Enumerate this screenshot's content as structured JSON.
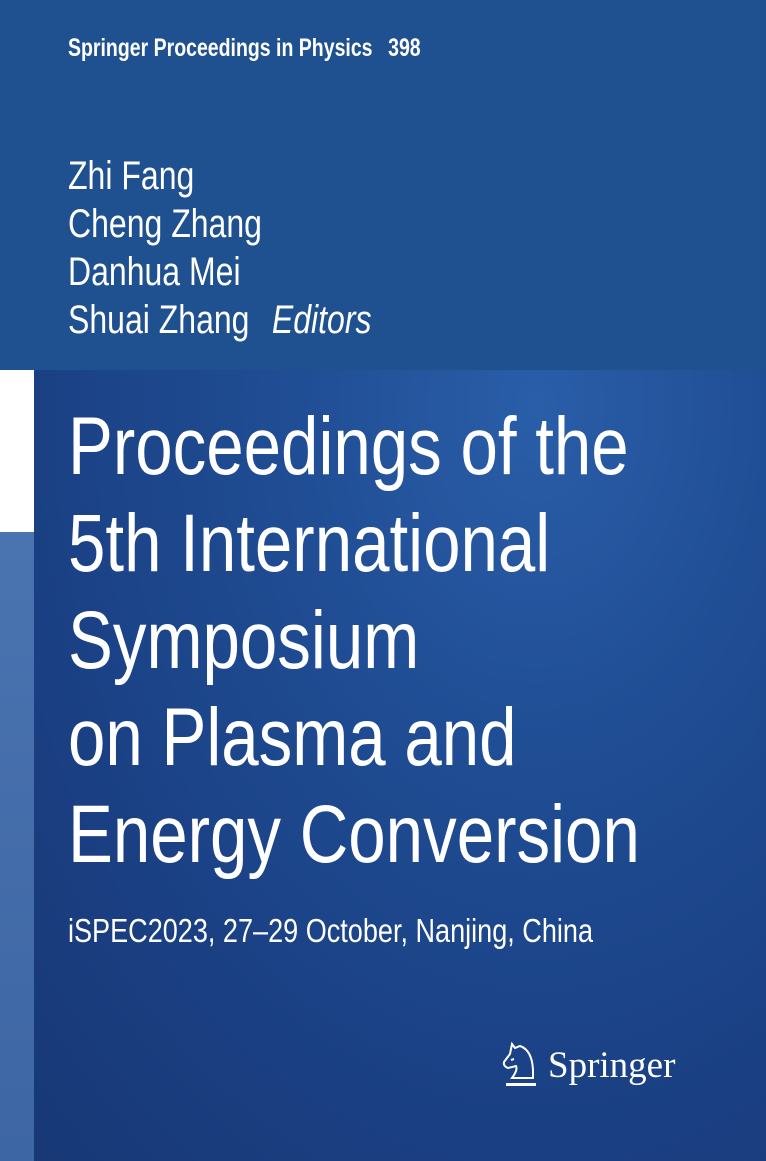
{
  "series": {
    "name": "Springer Proceedings in Physics",
    "volume": "398"
  },
  "editors": {
    "names": [
      "Zhi Fang",
      "Cheng Zhang",
      "Danhua Mei",
      "Shuai Zhang"
    ],
    "label": "Editors"
  },
  "title_lines": [
    "Proceedings of the",
    "5th International",
    "Symposium",
    "on Plasma and",
    "Energy Conversion"
  ],
  "subtitle": "iSPEC2023, 27–29 October, Nanjing, China",
  "publisher": {
    "logo_text": "Springer",
    "logo_icon": "knight-chess-horse-icon"
  },
  "colors": {
    "top_band": "#1f5191",
    "background": "#1a3f82",
    "text": "#ffffff"
  }
}
